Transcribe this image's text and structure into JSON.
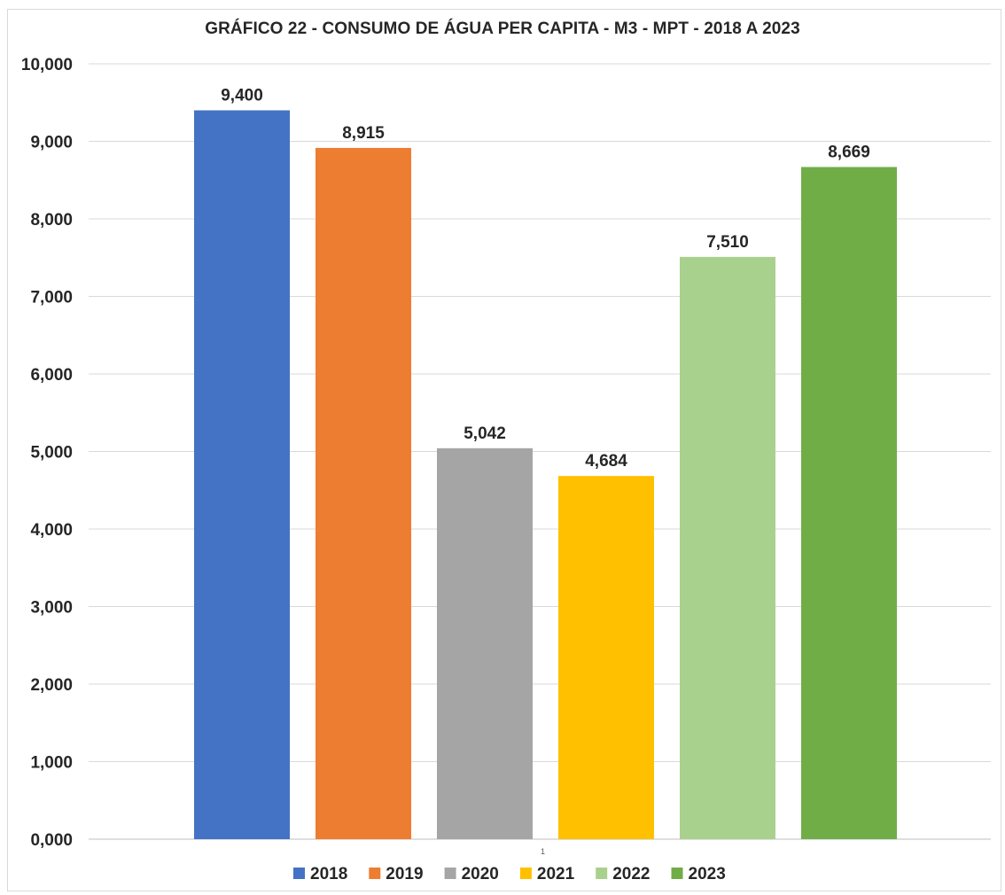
{
  "chart_data": {
    "type": "bar",
    "title": "GRÁFICO 22  -  CONSUMO DE ÁGUA  PER CAPITA - M3 - MPT - 2018 A 2023",
    "categories": [
      "1"
    ],
    "ylim": [
      0,
      10
    ],
    "yticks": [
      0,
      1,
      2,
      3,
      4,
      5,
      6,
      7,
      8,
      9,
      10
    ],
    "ytick_labels": [
      "0,000",
      "1,000",
      "2,000",
      "3,000",
      "4,000",
      "5,000",
      "6,000",
      "7,000",
      "8,000",
      "9,000",
      "10,000"
    ],
    "grid": true,
    "legend_position": "bottom",
    "series": [
      {
        "name": "2018",
        "values": [
          9.4
        ],
        "label": "9,400",
        "color": "#4472C4"
      },
      {
        "name": "2019",
        "values": [
          8.915
        ],
        "label": "8,915",
        "color": "#ED7D31"
      },
      {
        "name": "2020",
        "values": [
          5.042
        ],
        "label": "5,042",
        "color": "#A5A5A5"
      },
      {
        "name": "2021",
        "values": [
          4.684
        ],
        "label": "4,684",
        "color": "#FFC000"
      },
      {
        "name": "2022",
        "values": [
          7.51
        ],
        "label": "7,510",
        "color": "#A9D18E"
      },
      {
        "name": "2023",
        "values": [
          8.669
        ],
        "label": "8,669",
        "color": "#70AD47"
      }
    ]
  }
}
